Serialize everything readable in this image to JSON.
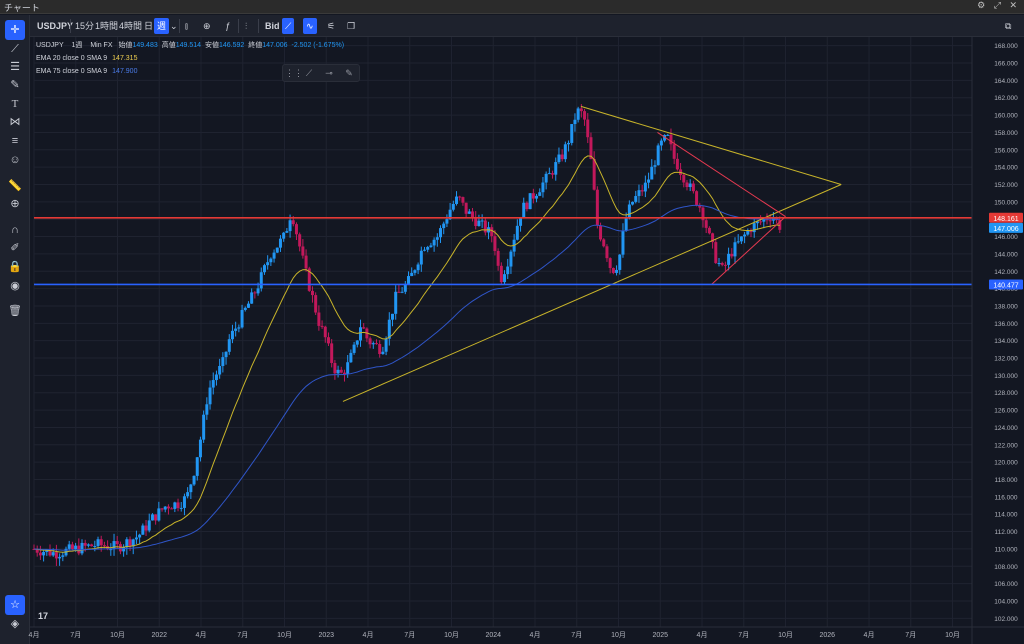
{
  "window": {
    "title": "チャート",
    "controls": [
      "⚙",
      "⤢",
      "✕"
    ]
  },
  "toolbar": {
    "symbol": "USDJPY",
    "intervals": [
      "15分",
      "1時間",
      "4時間",
      "日",
      "週"
    ],
    "active_interval": "週",
    "bid_label": "Bid",
    "icons": [
      "chevron-down-icon",
      "bar-type-icon",
      "add-indicator-icon",
      "function-icon",
      "compare-icon",
      "bid-icon",
      "line-chart-icon",
      "wave-icon",
      "alert-icon",
      "layout-icon",
      "fullscreen-icon"
    ]
  },
  "left_tools": [
    "crosshair-icon",
    "trendline-icon",
    "fib-icon",
    "brush-icon",
    "text-icon",
    "pattern-icon",
    "ruler-lines-icon",
    "emoji-icon",
    "measure-icon",
    "zoom-icon",
    "magnet-icon",
    "lock-draw-icon",
    "lock-icon",
    "eye-icon",
    "trash-icon",
    "star-icon",
    "layers-icon"
  ],
  "legend": {
    "symbol": "USDJPY",
    "interval": "1週",
    "source": "Min FX",
    "open_label": "始値",
    "open": "149.483",
    "high_label": "高値",
    "high": "149.514",
    "low_label": "安値",
    "low": "146.592",
    "close_label": "終値",
    "close": "147.006",
    "change": "-2.502 (-1.675%)",
    "ema20_label": "EMA 20 close 0 SMA 9",
    "ema20_value": "147.315",
    "ema75_label": "EMA 75 close 0 SMA 9",
    "ema75_value": "147.900"
  },
  "colors": {
    "background": "#131722",
    "grid": "#1f2330",
    "up": "#2196f3",
    "down": "#c2185b",
    "ema20": "#c8b42a",
    "ema75": "#2f55c8",
    "resistance": "#e53935",
    "support": "#2962ff",
    "triangle": "#c8b42a",
    "wedge": "#e53950",
    "axis_text": "#b2b5be"
  },
  "chart_data": {
    "type": "candlestick",
    "symbol": "USDJPY",
    "timeframe": "1週",
    "ylim": [
      101,
      169
    ],
    "y_ticks": [
      "102.000",
      "104.000",
      "106.000",
      "108.000",
      "110.000",
      "112.000",
      "114.000",
      "116.000",
      "118.000",
      "120.000",
      "122.000",
      "124.000",
      "126.000",
      "128.000",
      "130.000",
      "132.000",
      "134.000",
      "136.000",
      "138.000",
      "140.000",
      "142.000",
      "144.000",
      "146.000",
      "148.000",
      "150.000",
      "152.000",
      "154.000",
      "156.000",
      "158.000",
      "160.000",
      "162.000",
      "164.000",
      "166.000",
      "168.000"
    ],
    "x_ticks": [
      "4月",
      "7月",
      "10月",
      "2022",
      "4月",
      "7月",
      "10月",
      "2023",
      "4月",
      "7月",
      "10月",
      "2024",
      "4月",
      "7月",
      "10月",
      "2025",
      "4月",
      "7月",
      "10月",
      "2026",
      "4月",
      "7月",
      "10月"
    ],
    "x_tick_months": [
      0,
      3,
      6,
      9,
      12,
      15,
      18,
      21,
      24,
      27,
      30,
      33,
      36,
      39,
      42,
      45,
      48,
      51,
      54,
      57,
      60,
      63,
      66
    ],
    "x_range_months": [
      0,
      67.4
    ],
    "close_path": [
      [
        0,
        110
      ],
      [
        1.5,
        109.5
      ],
      [
        3,
        110
      ],
      [
        4.5,
        110.5
      ],
      [
        6,
        110.2
      ],
      [
        7.5,
        111.5
      ],
      [
        8.5,
        113.5
      ],
      [
        9.5,
        115
      ],
      [
        10.5,
        115.3
      ],
      [
        11,
        116
      ],
      [
        11.5,
        119
      ],
      [
        12,
        123
      ],
      [
        12.5,
        128
      ],
      [
        13,
        130
      ],
      [
        13.5,
        131
      ],
      [
        14,
        134
      ],
      [
        14.5,
        135.5
      ],
      [
        15,
        137
      ],
      [
        16,
        140
      ],
      [
        17,
        144
      ],
      [
        18,
        146
      ],
      [
        18.5,
        149
      ],
      [
        19.5,
        142
      ],
      [
        20,
        139
      ],
      [
        20.5,
        136
      ],
      [
        21,
        134
      ],
      [
        21.5,
        131
      ],
      [
        22,
        130
      ],
      [
        22.5,
        131
      ],
      [
        23,
        133
      ],
      [
        23.5,
        136
      ],
      [
        24,
        134
      ],
      [
        25,
        133
      ],
      [
        26,
        139
      ],
      [
        27,
        141
      ],
      [
        28,
        145
      ],
      [
        29,
        146
      ],
      [
        30,
        149.5
      ],
      [
        30.5,
        150.5
      ],
      [
        31,
        149
      ],
      [
        32,
        147.5
      ],
      [
        33,
        146
      ],
      [
        33.5,
        141
      ],
      [
        34,
        143
      ],
      [
        35,
        149
      ],
      [
        35.5,
        150
      ],
      [
        36,
        151
      ],
      [
        37,
        153
      ],
      [
        38,
        155.5
      ],
      [
        38.5,
        157.5
      ],
      [
        39,
        160.5
      ],
      [
        39.5,
        160
      ],
      [
        40,
        155
      ],
      [
        40.5,
        147
      ],
      [
        41,
        145
      ],
      [
        41.5,
        142
      ],
      [
        42,
        143
      ],
      [
        42.5,
        148
      ],
      [
        43,
        150
      ],
      [
        44,
        152
      ],
      [
        45,
        156.5
      ],
      [
        45.5,
        157.5
      ],
      [
        46,
        155
      ],
      [
        47,
        152
      ],
      [
        48,
        149
      ],
      [
        48.5,
        146
      ],
      [
        49,
        143.5
      ],
      [
        49.5,
        142
      ],
      [
        50,
        144
      ],
      [
        51,
        146
      ],
      [
        51.5,
        147
      ],
      [
        52,
        147.5
      ],
      [
        53,
        148.5
      ],
      [
        53.7,
        147.0
      ]
    ],
    "series": [
      {
        "name": "EMA 20 close 0 SMA 9",
        "last_value": 147.315
      },
      {
        "name": "EMA 75 close 0 SMA 9",
        "last_value": 147.9
      }
    ],
    "annotations": {
      "horizontal_lines": [
        {
          "price": 148.161,
          "label": "148.161",
          "color": "#e53935"
        },
        {
          "price": 140.477,
          "label": "140.477",
          "color": "#2962ff"
        }
      ],
      "current_price": {
        "price": 147.006,
        "label": "147.006"
      },
      "triangle_upper": [
        [
          39.3,
          161
        ],
        [
          58,
          152
        ]
      ],
      "triangle_lower": [
        [
          22.2,
          127
        ],
        [
          58,
          152
        ]
      ],
      "wedge_upper": [
        [
          44.8,
          158
        ],
        [
          54,
          148.3
        ]
      ],
      "wedge_lower": [
        [
          48.7,
          140.5
        ],
        [
          54,
          148.3
        ]
      ]
    },
    "grid": true
  }
}
